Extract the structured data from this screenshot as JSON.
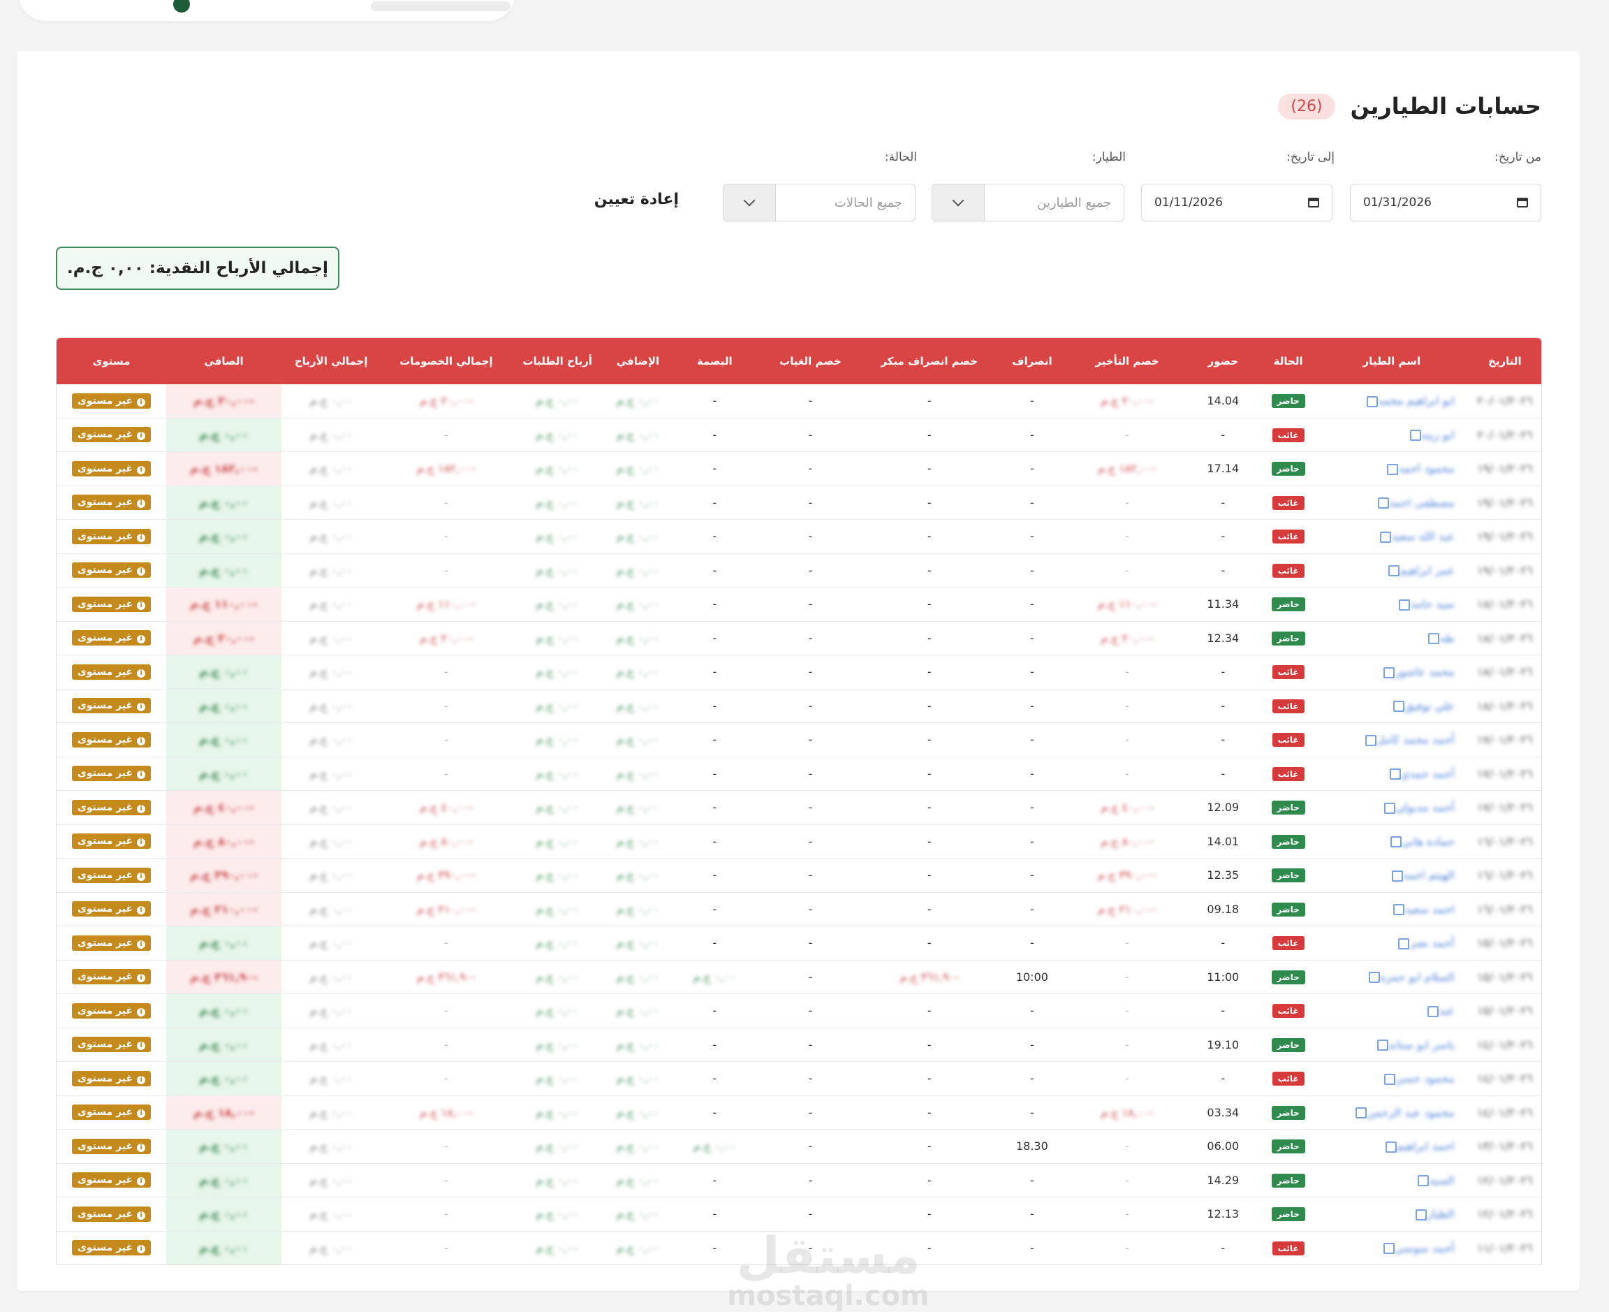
{
  "page": {
    "title": "حسابات الطيارين",
    "count": "(26)"
  },
  "filters": {
    "from_label": "من تاريخ:",
    "from_value": "01/31/2026",
    "to_label": "إلى تاريخ:",
    "to_value": "01/11/2026",
    "pilot_label": "الطيار:",
    "pilot_placeholder": "جميع الطيارين",
    "status_label": "الحالة:",
    "status_placeholder": "جميع الحالات",
    "reset_label": "إعادة تعيين"
  },
  "summary": {
    "total_cash_profit": "إجمالي الأرباح النقدية: ٠,٠٠ ج.م."
  },
  "table": {
    "columns": [
      "التاريخ",
      "اسم الطيار",
      "الحالة",
      "حضور",
      "خصم التأخير",
      "انصراف",
      "خصم انصراف مبكر",
      "خصم الغياب",
      "البصمة",
      "الإضافي",
      "أرباح الطلبات",
      "إجمالي الخصومات",
      "إجمالي الأرباح",
      "الصافي",
      "مستوى"
    ],
    "level_label": "غير مستوى",
    "rows": [
      {
        "date": "٢٠/٠١/٢٠٢٦",
        "name": "ابو ابراهيم محمد",
        "status": "حاضر",
        "status_color": "green",
        "checkin": "14.04",
        "late": "-٢٠,٠٠ ج.م",
        "checkout": "-",
        "early": "-",
        "absence": "-",
        "fp": "-",
        "extra": "٠,٠٠ ج.م",
        "orders": "٠,٠٠ ج.م",
        "deductions": "-٢٠,٠٠ ج.م",
        "total": "٠,٠٠ ج.م",
        "net": "-٢٠,٠٠ ج.م",
        "net_color": "red"
      },
      {
        "date": "٢٠/٠١/٢٠٢٦",
        "name": "ابو زينه",
        "status": "غائب",
        "status_color": "red",
        "checkin": "-",
        "late": "-",
        "checkout": "-",
        "early": "-",
        "absence": "-",
        "fp": "-",
        "extra": "٠,٠٠ ج.م",
        "orders": "٠,٠٠ ج.م",
        "deductions": "-",
        "total": "٠,٠٠ ج.م",
        "net": "٠,٠٠ ج.م",
        "net_color": "green"
      },
      {
        "date": "١٩/٠١/٢٠٢٦",
        "name": "محمود احمد",
        "status": "حاضر",
        "status_color": "green",
        "checkin": "17.14",
        "late": "-١٨٢,٠٠ ج.م",
        "checkout": "-",
        "early": "-",
        "absence": "-",
        "fp": "-",
        "extra": "٠,٠٠ ج.م",
        "orders": "٠,٠٠ ج.م",
        "deductions": "-١٨٢,٠٠ ج.م",
        "total": "٠,٠٠ ج.م",
        "net": "-١٨٢,٠٠ ج.م",
        "net_color": "red"
      },
      {
        "date": "١٩/٠١/٢٠٢٦",
        "name": "مصطفى احمد",
        "status": "غائب",
        "status_color": "red",
        "checkin": "-",
        "late": "-",
        "checkout": "-",
        "early": "-",
        "absence": "-",
        "fp": "-",
        "extra": "٠,٠٠ ج.م",
        "orders": "٠,٠٠ ج.م",
        "deductions": "-",
        "total": "٠,٠٠ ج.م",
        "net": "٠,٠٠ ج.م",
        "net_color": "green"
      },
      {
        "date": "١٩/٠١/٢٠٢٦",
        "name": "عبد الله سعيد",
        "status": "غائب",
        "status_color": "red",
        "checkin": "-",
        "late": "-",
        "checkout": "-",
        "early": "-",
        "absence": "-",
        "fp": "-",
        "extra": "٠,٠٠ ج.م",
        "orders": "٠,٠٠ ج.م",
        "deductions": "-",
        "total": "٠,٠٠ ج.م",
        "net": "٠,٠٠ ج.م",
        "net_color": "green"
      },
      {
        "date": "١٩/٠١/٢٠٢٦",
        "name": "عمر ابراهيم",
        "status": "غائب",
        "status_color": "red",
        "checkin": "-",
        "late": "-",
        "checkout": "-",
        "early": "-",
        "absence": "-",
        "fp": "-",
        "extra": "٠,٠٠ ج.م",
        "orders": "٠,٠٠ ج.م",
        "deductions": "-",
        "total": "٠,٠٠ ج.م",
        "net": "٠,٠٠ ج.م",
        "net_color": "green"
      },
      {
        "date": "١٨/٠١/٢٠٢٦",
        "name": "سيد حامد",
        "status": "حاضر",
        "status_color": "green",
        "checkin": "11.34",
        "late": "-١١٠,٠٠ ج.م",
        "checkout": "-",
        "early": "-",
        "absence": "-",
        "fp": "-",
        "extra": "٠,٠٠ ج.م",
        "orders": "٠,٠٠ ج.م",
        "deductions": "-١١٠,٠٠ ج.م",
        "total": "٠,٠٠ ج.م",
        "net": "-١١٠,٠٠ ج.م",
        "net_color": "red"
      },
      {
        "date": "١٨/٠١/٢٠٢٦",
        "name": "طه",
        "status": "حاضر",
        "status_color": "green",
        "checkin": "12.34",
        "late": "-٢٠,٠٠ ج.م",
        "checkout": "-",
        "early": "-",
        "absence": "-",
        "fp": "-",
        "extra": "٠,٠٠ ج.م",
        "orders": "٠,٠٠ ج.م",
        "deductions": "-٢٠,٠٠ ج.م",
        "total": "٠,٠٠ ج.م",
        "net": "-٢٠,٠٠ ج.م",
        "net_color": "red"
      },
      {
        "date": "١٨/٠١/٢٠٢٦",
        "name": "محمد عاشور",
        "status": "غائب",
        "status_color": "red",
        "checkin": "-",
        "late": "-",
        "checkout": "-",
        "early": "-",
        "absence": "-",
        "fp": "-",
        "extra": "٠,٠٠ ج.م",
        "orders": "٠,٠٠ ج.م",
        "deductions": "-",
        "total": "٠,٠٠ ج.م",
        "net": "٠,٠٠ ج.م",
        "net_color": "green"
      },
      {
        "date": "١٨/٠١/٢٠٢٦",
        "name": "علي توفيق",
        "status": "غائب",
        "status_color": "red",
        "checkin": "-",
        "late": "-",
        "checkout": "-",
        "early": "-",
        "absence": "-",
        "fp": "-",
        "extra": "٠,٠٠ ج.م",
        "orders": "٠,٠٠ ج.م",
        "deductions": "-",
        "total": "٠,٠٠ ج.م",
        "net": "٠,٠٠ ج.م",
        "net_color": "green"
      },
      {
        "date": "١٧/٠١/٢٠٢٦",
        "name": "أحمد محمد كامل",
        "status": "غائب",
        "status_color": "red",
        "checkin": "-",
        "late": "-",
        "checkout": "-",
        "early": "-",
        "absence": "-",
        "fp": "-",
        "extra": "٠,٠٠ ج.م",
        "orders": "٠,٠٠ ج.م",
        "deductions": "-",
        "total": "٠,٠٠ ج.م",
        "net": "٠,٠٠ ج.م",
        "net_color": "green"
      },
      {
        "date": "١٧/٠١/٢٠٢٦",
        "name": "أحمد حمدي",
        "status": "غائب",
        "status_color": "red",
        "checkin": "-",
        "late": "-",
        "checkout": "-",
        "early": "-",
        "absence": "-",
        "fp": "-",
        "extra": "٠,٠٠ ج.م",
        "orders": "٠,٠٠ ج.م",
        "deductions": "-",
        "total": "٠,٠٠ ج.م",
        "net": "٠,٠٠ ج.م",
        "net_color": "green"
      },
      {
        "date": "١٧/٠١/٢٠٢٦",
        "name": "أحمد مدبولي",
        "status": "حاضر",
        "status_color": "green",
        "checkin": "12.09",
        "late": "-٤٠,٠٠ ج.م",
        "checkout": "-",
        "early": "-",
        "absence": "-",
        "fp": "-",
        "extra": "٠,٠٠ ج.م",
        "orders": "٠,٠٠ ج.م",
        "deductions": "-٤٠,٠٠ ج.م",
        "total": "٠,٠٠ ج.م",
        "net": "-٤٠,٠٠ ج.م",
        "net_color": "red"
      },
      {
        "date": "١٦/٠١/٢٠٢٦",
        "name": "حمادة هاني",
        "status": "حاضر",
        "status_color": "green",
        "checkin": "14.01",
        "late": "-٨٠,٠٠ ج.م",
        "checkout": "-",
        "early": "-",
        "absence": "-",
        "fp": "-",
        "extra": "٠,٠٠ ج.م",
        "orders": "٠,٠٠ ج.م",
        "deductions": "-٨٠,٠٠ ج.م",
        "total": "٠,٠٠ ج.م",
        "net": "-٨٠,٠٠ ج.م",
        "net_color": "red"
      },
      {
        "date": "١٦/٠١/٢٠٢٦",
        "name": "الهيثم احمد",
        "status": "حاضر",
        "status_color": "green",
        "checkin": "12.35",
        "late": "-٣٩٠,٠٠ ج.م",
        "checkout": "-",
        "early": "-",
        "absence": "-",
        "fp": "-",
        "extra": "٠,٠٠ ج.م",
        "orders": "٠,٠٠ ج.م",
        "deductions": "-٣٩٠,٠٠ ج.م",
        "total": "٠,٠٠ ج.م",
        "net": "-٣٩٠,٠٠ ج.م",
        "net_color": "red"
      },
      {
        "date": "١٦/٠١/٢٠٢٦",
        "name": "احمد سعيد",
        "status": "حاضر",
        "status_color": "green",
        "checkin": "09.18",
        "late": "-٢١٠,٠٠ ج.م",
        "checkout": "-",
        "early": "-",
        "absence": "-",
        "fp": "-",
        "extra": "٠,٠٠ ج.م",
        "orders": "٠,٠٠ ج.م",
        "deductions": "-٢١٠,٠٠ ج.م",
        "total": "٠,٠٠ ج.م",
        "net": "-٢١٠,٠٠ ج.م",
        "net_color": "red"
      },
      {
        "date": "١٥/٠١/٢٠٢٦",
        "name": "أحمد نصر",
        "status": "غائب",
        "status_color": "red",
        "checkin": "-",
        "late": "-",
        "checkout": "-",
        "early": "-",
        "absence": "-",
        "fp": "-",
        "extra": "٠,٠٠ ج.م",
        "orders": "٠,٠٠ ج.م",
        "deductions": "-",
        "total": "٠,٠٠ ج.م",
        "net": "٠,٠٠ ج.م",
        "net_color": "green"
      },
      {
        "date": "١٥/٠١/٢٠٢٦",
        "name": "السلام ابو حمزة",
        "status": "حاضر",
        "status_color": "green",
        "checkin": "11:00",
        "late": "-",
        "checkout": "10:00",
        "early": "-٣٦١,٩٠ ج.م",
        "absence": "-",
        "fp": "٠,٠٠ ج.م",
        "extra": "٠,٠٠ ج.م",
        "orders": "٠,٠٠ ج.م",
        "deductions": "-٣٦١,٩٠ ج.م",
        "total": "٠,٠٠ ج.م",
        "net": "-٣٦١,٩٠ ج.م",
        "net_color": "red"
      },
      {
        "date": "١٥/٠١/٢٠٢٦",
        "name": "عبد",
        "status": "غائب",
        "status_color": "red",
        "checkin": "-",
        "late": "-",
        "checkout": "-",
        "early": "-",
        "absence": "-",
        "fp": "-",
        "extra": "٠,٠٠ ج.م",
        "orders": "٠,٠٠ ج.م",
        "deductions": "-",
        "total": "٠,٠٠ ج.م",
        "net": "٠,٠٠ ج.م",
        "net_color": "green"
      },
      {
        "date": "١٤/٠١/٢٠٢٦",
        "name": "ياسر ابو ستاند",
        "status": "حاضر",
        "status_color": "green",
        "checkin": "19.10",
        "late": "-",
        "checkout": "-",
        "early": "-",
        "absence": "-",
        "fp": "-",
        "extra": "٠,٠٠ ج.م",
        "orders": "٠,٠٠ ج.م",
        "deductions": "-",
        "total": "٠,٠٠ ج.م",
        "net": "٠,٠٠ ج.م",
        "net_color": "green"
      },
      {
        "date": "١٤/٠١/٢٠٢٦",
        "name": "محمود حسن",
        "status": "غائب",
        "status_color": "red",
        "checkin": "-",
        "late": "-",
        "checkout": "-",
        "early": "-",
        "absence": "-",
        "fp": "-",
        "extra": "٠,٠٠ ج.م",
        "orders": "٠,٠٠ ج.م",
        "deductions": "-",
        "total": "٠,٠٠ ج.م",
        "net": "٠,٠٠ ج.م",
        "net_color": "green"
      },
      {
        "date": "١٤/٠١/٢٠٢٦",
        "name": "محمود عبد الرحمن",
        "status": "حاضر",
        "status_color": "green",
        "checkin": "03.34",
        "late": "-١٨,٠٠ ج.م",
        "checkout": "-",
        "early": "-",
        "absence": "-",
        "fp": "-",
        "extra": "٠,٠٠ ج.م",
        "orders": "٠,٠٠ ج.م",
        "deductions": "-١٨,٠٠ ج.م",
        "total": "٠,٠٠ ج.م",
        "net": "-١٨,٠٠ ج.م",
        "net_color": "red"
      },
      {
        "date": "١٣/٠١/٢٠٢٦",
        "name": "احمد ابراهيم",
        "status": "حاضر",
        "status_color": "green",
        "checkin": "06.00",
        "late": "-",
        "checkout": "18.30",
        "early": "-",
        "absence": "-",
        "fp": "٠,٠٠ ج.م",
        "extra": "٠,٠٠ ج.م",
        "orders": "٠,٠٠ ج.م",
        "deductions": "-",
        "total": "٠,٠٠ ج.م",
        "net": "٠,٠٠ ج.م",
        "net_color": "green"
      },
      {
        "date": "١٢/٠١/٢٠٢٦",
        "name": "السيد",
        "status": "حاضر",
        "status_color": "green",
        "checkin": "14.29",
        "late": "-",
        "checkout": "-",
        "early": "-",
        "absence": "-",
        "fp": "-",
        "extra": "٠,٠٠ ج.م",
        "orders": "٠,٠٠ ج.م",
        "deductions": "-",
        "total": "٠,٠٠ ج.م",
        "net": "٠,٠٠ ج.م",
        "net_color": "green"
      },
      {
        "date": "١٢/٠١/٢٠٢٦",
        "name": "الطيار",
        "status": "حاضر",
        "status_color": "green",
        "checkin": "12.13",
        "late": "-",
        "checkout": "-",
        "early": "-",
        "absence": "-",
        "fp": "-",
        "extra": "٠,٠٠ ج.م",
        "orders": "٠,٠٠ ج.م",
        "deductions": "-",
        "total": "٠,٠٠ ج.م",
        "net": "٠,٠٠ ج.م",
        "net_color": "green"
      },
      {
        "date": "١١/٠١/٢٠٢٦",
        "name": "أحمد سوسي",
        "status": "غائب",
        "status_color": "red",
        "checkin": "-",
        "late": "-",
        "checkout": "-",
        "early": "-",
        "absence": "-",
        "fp": "-",
        "extra": "٠,٠٠ ج.م",
        "orders": "٠,٠٠ ج.م",
        "deductions": "-",
        "total": "٠,٠٠ ج.م",
        "net": "٠,٠٠ ج.م",
        "net_color": "green"
      }
    ]
  },
  "watermark": {
    "arabic": "مستقل",
    "latin": "mostaql.com"
  },
  "colors": {
    "header_red": "#d94545",
    "status_green": "#2f8a4e",
    "status_red": "#d73a3a",
    "level_gold": "#c48a1c",
    "total_border": "#3d8a5a"
  }
}
